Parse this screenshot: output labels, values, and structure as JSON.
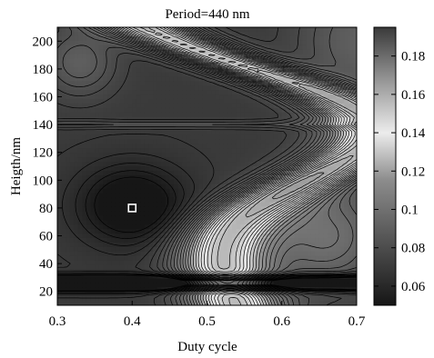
{
  "chart_data": {
    "type": "heatmap",
    "title": "Period=440  nm",
    "xlabel": "Duty cycle",
    "ylabel": "Heigth/nm",
    "xlim": [
      0.3,
      0.7
    ],
    "ylim": [
      10,
      210
    ],
    "x_ticks": [
      "0.3",
      "0.4",
      "0.5",
      "0.6",
      "0.7"
    ],
    "y_ticks": [
      "20",
      "40",
      "60",
      "80",
      "100",
      "120",
      "140",
      "160",
      "180",
      "200"
    ],
    "colorbar": {
      "range": [
        0.05,
        0.195
      ],
      "ticks": [
        "0.06",
        "0.08",
        "0.1",
        "0.12",
        "0.14",
        "0.16",
        "0.18"
      ],
      "colormap": "gray"
    },
    "optimum_marker": {
      "x": 0.4,
      "y": 80
    },
    "grid": false
  }
}
